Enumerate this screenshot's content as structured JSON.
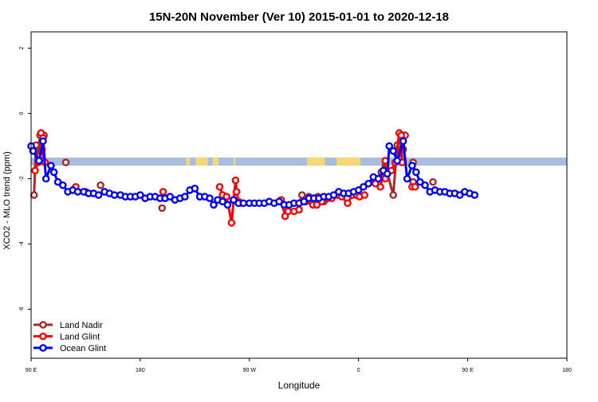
{
  "chart_data": {
    "type": "line",
    "title": "15N-20N November (Ver 10)   2015-01-01 to 2020-12-18",
    "xlabel": "Longitude",
    "ylabel": "XCO2 - MLO trend (ppm)",
    "xlim": [
      -90,
      180
    ],
    "ylim": [
      -7.5,
      2.5
    ],
    "x_ticks": [
      -90,
      -35,
      20,
      75,
      130,
      180
    ],
    "x_tick_labels": [
      "90 E",
      "180",
      "90 W",
      "0",
      "90 E",
      "180"
    ],
    "y_ticks": [
      2,
      0,
      -2,
      -4,
      -6
    ],
    "y_tick_labels": [
      "2",
      "0",
      "-2",
      "-4",
      "-6"
    ],
    "grid": false,
    "legend_position": "bottom-left",
    "map_band": {
      "y_range": [
        -1.6,
        -1.35
      ],
      "ocean_color": "#a8bddf",
      "land_color": "#f7d774",
      "land_x_ranges": [
        [
          -86,
          -84.5
        ],
        [
          -12,
          -10
        ],
        [
          -7,
          -1
        ],
        [
          1.5,
          4.5
        ],
        [
          12,
          13
        ],
        [
          49,
          58
        ],
        [
          64,
          73
        ],
        [
          72,
          76
        ]
      ]
    },
    "series": [
      {
        "name": "Land Nadir",
        "color": "#a52a2a",
        "segments": [
          [
            [
              -88.5,
              -2.5
            ],
            [
              -87.5,
              -0.97
            ],
            [
              -86.5,
              -1.4
            ],
            [
              -85.5,
              -0.67
            ],
            [
              -84.5,
              -1.1
            ],
            [
              -83.5,
              -0.67
            ]
          ],
          [
            [
              -72.5,
              -1.5
            ]
          ],
          [
            [
              -62.5,
              -2.4
            ]
          ],
          [
            [
              -55,
              -2.2
            ]
          ],
          [
            [
              -24,
              -2.9
            ]
          ],
          [
            [
              46.5,
              -2.5
            ],
            [
              50,
              -2.55
            ],
            [
              52.5,
              -2.6
            ],
            [
              54.5,
              -2.55
            ],
            [
              57.5,
              -2.7
            ]
          ],
          [
            [
              83,
              -2.1
            ],
            [
              86.5,
              -1.8
            ],
            [
              88.5,
              -1.6
            ],
            [
              92.5,
              -2.5
            ],
            [
              94.5,
              -0.97
            ],
            [
              95.5,
              -1.4
            ],
            [
              96.5,
              -0.67
            ],
            [
              97.5,
              -1.1
            ],
            [
              98.5,
              -0.67
            ]
          ],
          [
            [
              102.5,
              -1.5
            ]
          ],
          [
            [
              102.5,
              -2.1
            ]
          ],
          [
            [
              112.5,
              -2.1
            ]
          ]
        ]
      },
      {
        "name": "Land Glint",
        "color": "#ff0000",
        "segments": [
          [
            [
              -88,
              -1.75
            ],
            [
              -86.5,
              -1.5
            ],
            [
              -85.5,
              -1.3
            ],
            [
              -85,
              -0.6
            ],
            [
              -84,
              -0.75
            ],
            [
              -83,
              -1.5
            ]
          ],
          [
            [
              -67.5,
              -2.25
            ]
          ],
          [
            [
              -23.5,
              -2.4
            ]
          ],
          [
            [
              5,
              -2.25
            ],
            [
              6.5,
              -2.5
            ],
            [
              8.5,
              -2.55
            ],
            [
              11,
              -3.35
            ],
            [
              13,
              -2.05
            ],
            [
              13.5,
              -2.4
            ],
            [
              14.5,
              -2.7
            ],
            [
              16,
              -2.75
            ]
          ],
          [
            [
              36,
              -2.65
            ],
            [
              38,
              -3.15
            ],
            [
              39.5,
              -3.0
            ],
            [
              42.5,
              -3.0
            ],
            [
              45,
              -2.95
            ],
            [
              46.5,
              -2.7
            ],
            [
              48.5,
              -2.7
            ],
            [
              52,
              -2.8
            ],
            [
              54,
              -2.8
            ],
            [
              56.5,
              -2.7
            ],
            [
              59.5,
              -2.6
            ],
            [
              61.5,
              -2.6
            ],
            [
              64,
              -2.5
            ],
            [
              66.5,
              -2.55
            ],
            [
              69.5,
              -2.75
            ],
            [
              72,
              -2.5
            ],
            [
              74,
              -2.5
            ],
            [
              75.5,
              -2.55
            ],
            [
              78,
              -2.5
            ]
          ],
          [
            [
              83.5,
              -2.15
            ],
            [
              86,
              -2.25
            ],
            [
              88.5,
              -1.45
            ],
            [
              88.5,
              -2.0
            ],
            [
              91.5,
              -1.75
            ],
            [
              93.5,
              -1.5
            ],
            [
              95.5,
              -0.6
            ],
            [
              96.5,
              -0.67
            ],
            [
              97,
              -1.5
            ]
          ],
          [
            [
              102,
              -2.25
            ],
            [
              103.5,
              -2.25
            ]
          ]
        ]
      },
      {
        "name": "Ocean Glint",
        "color": "#0000ff",
        "segments": [
          [
            [
              -90,
              -1.0
            ],
            [
              -89,
              -1.15
            ],
            [
              -86,
              -1.45
            ],
            [
              -84,
              -0.85
            ],
            [
              -82.5,
              -2.0
            ],
            [
              -80,
              -1.6
            ],
            [
              -78.5,
              -1.8
            ],
            [
              -76.5,
              -2.1
            ],
            [
              -74,
              -2.2
            ],
            [
              -71.5,
              -2.4
            ],
            [
              -69,
              -2.35
            ],
            [
              -66.5,
              -2.4
            ],
            [
              -63.5,
              -2.4
            ],
            [
              -61,
              -2.45
            ],
            [
              -58.5,
              -2.45
            ],
            [
              -56,
              -2.5
            ],
            [
              -53,
              -2.4
            ],
            [
              -50.5,
              -2.45
            ],
            [
              -48,
              -2.5
            ],
            [
              -45,
              -2.5
            ],
            [
              -42.5,
              -2.55
            ],
            [
              -40,
              -2.55
            ],
            [
              -37.5,
              -2.55
            ],
            [
              -35,
              -2.5
            ],
            [
              -32.5,
              -2.6
            ],
            [
              -30,
              -2.55
            ],
            [
              -27.5,
              -2.55
            ],
            [
              -25,
              -2.6
            ],
            [
              -22.5,
              -2.6
            ],
            [
              -20,
              -2.55
            ],
            [
              -17.5,
              -2.65
            ],
            [
              -15,
              -2.6
            ],
            [
              -12.5,
              -2.55
            ],
            [
              -10,
              -2.35
            ],
            [
              -7.5,
              -2.3
            ],
            [
              -5,
              -2.55
            ],
            [
              -2.5,
              -2.55
            ],
            [
              0,
              -2.6
            ],
            [
              2,
              -2.8
            ],
            [
              4,
              -2.65
            ],
            [
              6.5,
              -2.7
            ],
            [
              9,
              -2.8
            ],
            [
              12,
              -2.65
            ],
            [
              14.5,
              -2.75
            ],
            [
              17,
              -2.75
            ],
            [
              20,
              -2.75
            ],
            [
              22.5,
              -2.75
            ],
            [
              25,
              -2.75
            ],
            [
              27.5,
              -2.75
            ],
            [
              30,
              -2.7
            ],
            [
              32.5,
              -2.75
            ],
            [
              35,
              -2.7
            ],
            [
              37.5,
              -2.8
            ],
            [
              40,
              -2.8
            ],
            [
              42.5,
              -2.75
            ],
            [
              45,
              -2.75
            ],
            [
              47.5,
              -2.7
            ],
            [
              50,
              -2.6
            ],
            [
              52.5,
              -2.6
            ],
            [
              55,
              -2.6
            ],
            [
              57.5,
              -2.55
            ],
            [
              60,
              -2.55
            ],
            [
              62.5,
              -2.5
            ],
            [
              65,
              -2.4
            ],
            [
              67.5,
              -2.45
            ],
            [
              70,
              -2.45
            ],
            [
              72.5,
              -2.4
            ],
            [
              75,
              -2.35
            ],
            [
              77.5,
              -2.25
            ],
            [
              80,
              -2.15
            ],
            [
              82.5,
              -1.95
            ],
            [
              85,
              -2.0
            ],
            [
              87.5,
              -1.75
            ],
            [
              89.5,
              -1.85
            ],
            [
              90.5,
              -1.0
            ],
            [
              92.5,
              -1.15
            ],
            [
              94.5,
              -1.45
            ],
            [
              97.5,
              -0.85
            ],
            [
              99.5,
              -2.0
            ],
            [
              102,
              -1.6
            ],
            [
              104,
              -1.8
            ],
            [
              106,
              -2.1
            ],
            [
              108.5,
              -2.2
            ],
            [
              111,
              -2.4
            ],
            [
              113.5,
              -2.35
            ],
            [
              116,
              -2.4
            ],
            [
              118.5,
              -2.4
            ],
            [
              121,
              -2.45
            ],
            [
              123.5,
              -2.45
            ],
            [
              126,
              -2.5
            ],
            [
              128.5,
              -2.4
            ],
            [
              131,
              -2.45
            ],
            [
              133.5,
              -2.5
            ]
          ]
        ]
      }
    ]
  }
}
